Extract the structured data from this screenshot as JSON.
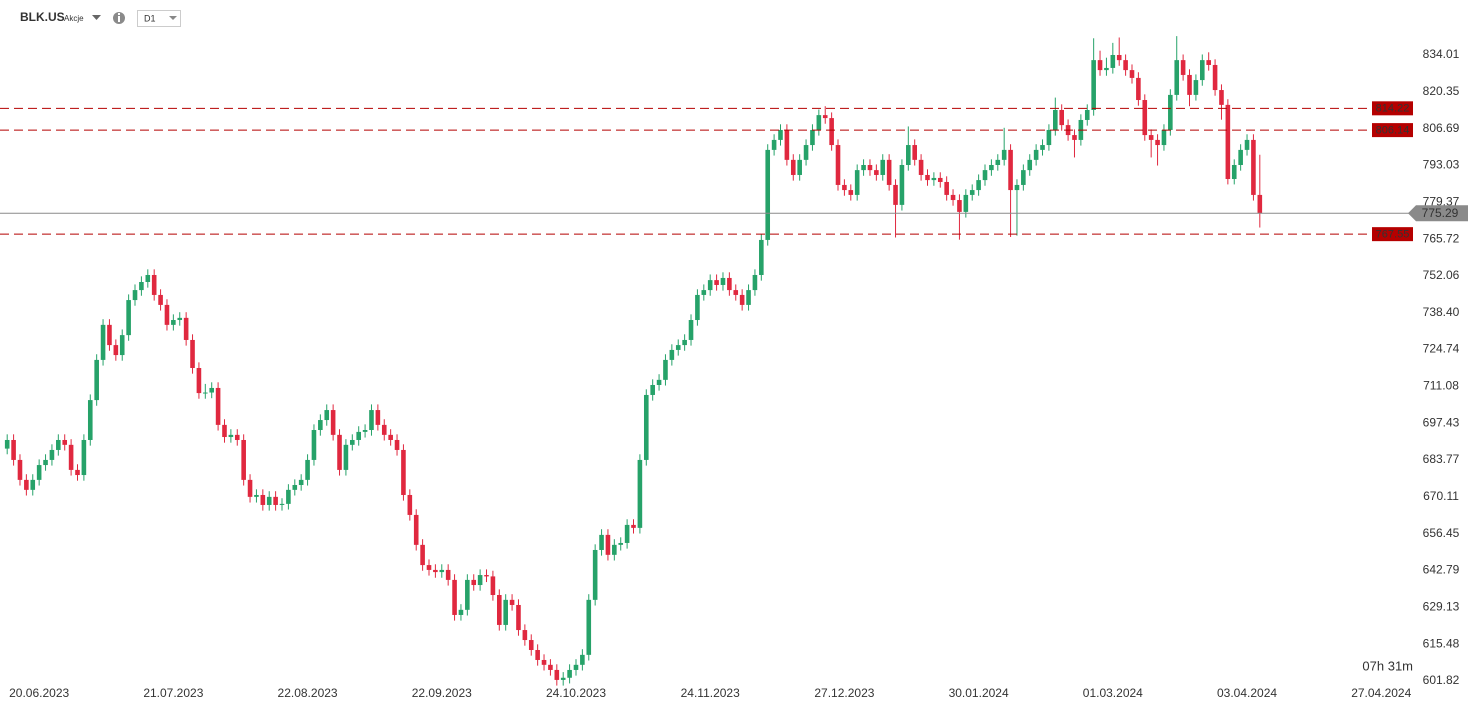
{
  "chart_data": {
    "type": "candlestick",
    "symbol": "BLK.US",
    "market": "Akcje",
    "interval": "D1",
    "countdown": "07h 31m",
    "up_color": "#26a269",
    "down_color": "#e0283f",
    "ylim": [
      592.9,
      854.4
    ],
    "yticks": [
      834.01,
      820.35,
      806.69,
      793.03,
      779.37,
      765.72,
      752.06,
      {
        "value": 738.4,
        "label": "738.40"
      },
      724.74,
      711.08,
      697.43,
      683.77,
      670.11,
      656.45,
      642.79,
      629.13,
      615.48,
      601.82
    ],
    "grid": false,
    "levels": [
      814.22,
      806.14,
      767.55
    ],
    "level_color": "#b50000",
    "last_price": 775.29,
    "last_price_color": "#8a8a8a",
    "categories": [
      null,
      null,
      null,
      null,
      null,
      "20.06.2023",
      null,
      null,
      null,
      null,
      null,
      null,
      null,
      null,
      null,
      null,
      null,
      null,
      null,
      null,
      null,
      null,
      null,
      null,
      null,
      null,
      "21.07.2023",
      null,
      null,
      null,
      null,
      null,
      null,
      null,
      null,
      null,
      null,
      null,
      null,
      null,
      null,
      null,
      null,
      null,
      null,
      null,
      null,
      "22.08.2023",
      null,
      null,
      null,
      null,
      null,
      null,
      null,
      null,
      null,
      null,
      null,
      null,
      null,
      null,
      null,
      null,
      null,
      null,
      null,
      null,
      "22.09.2023",
      null,
      null,
      null,
      null,
      null,
      null,
      null,
      null,
      null,
      null,
      null,
      null,
      null,
      null,
      null,
      null,
      null,
      null,
      null,
      null,
      "24.10.2023",
      null,
      null,
      null,
      null,
      null,
      null,
      null,
      null,
      null,
      null,
      null,
      null,
      null,
      null,
      null,
      null,
      null,
      null,
      null,
      null,
      "24.11.2023",
      null,
      null,
      null,
      null,
      null,
      null,
      null,
      null,
      null,
      null,
      null,
      null,
      null,
      null,
      null,
      null,
      null,
      null,
      null,
      null,
      "27.12.2023",
      null,
      null,
      null,
      null,
      null,
      null,
      null,
      null,
      null,
      null,
      null,
      null,
      null,
      null,
      null,
      null,
      null,
      null,
      null,
      null,
      "30.01.2024",
      null,
      null,
      null,
      null,
      null,
      null,
      null,
      null,
      null,
      null,
      null,
      null,
      null,
      null,
      null,
      null,
      null,
      null,
      null,
      null,
      "01.03.2024",
      null,
      null,
      null,
      null,
      null,
      null,
      null,
      null,
      null,
      null,
      null,
      null,
      null,
      null,
      null,
      null,
      null,
      null,
      null,
      null,
      "03.04.2024",
      null,
      null,
      null,
      null,
      null,
      null,
      null,
      null,
      null,
      null,
      null,
      null,
      null,
      null,
      null,
      null,
      null,
      null,
      null,
      null,
      "27.04.2024",
      null,
      null,
      null,
      null
    ],
    "ohlc": [
      [
        688.0,
        693.3,
        685.9,
        691.2
      ],
      [
        691.2,
        693.3,
        681.7,
        683.8
      ],
      [
        683.8,
        685.9,
        674.3,
        676.4
      ],
      [
        676.4,
        678.5,
        670.6,
        672.7
      ],
      [
        672.7,
        678.5,
        670.6,
        676.4
      ],
      [
        676.4,
        684.0,
        674.3,
        681.9
      ],
      [
        681.9,
        685.9,
        679.8,
        683.8
      ],
      [
        683.8,
        689.6,
        681.7,
        687.5
      ],
      [
        687.5,
        693.3,
        685.4,
        691.2
      ],
      [
        691.2,
        693.3,
        687.3,
        689.4
      ],
      [
        689.4,
        691.5,
        678.0,
        680.1
      ],
      [
        680.1,
        682.2,
        676.1,
        678.2
      ],
      [
        678.2,
        693.3,
        676.1,
        691.2
      ],
      [
        691.2,
        708.1,
        689.1,
        706.0
      ],
      [
        706.0,
        723.0,
        703.9,
        720.9
      ],
      [
        720.9,
        736.0,
        718.8,
        733.9
      ],
      [
        733.9,
        736.0,
        724.3,
        726.4
      ],
      [
        726.4,
        728.5,
        720.6,
        722.7
      ],
      [
        722.7,
        732.2,
        720.6,
        730.1
      ],
      [
        730.1,
        745.2,
        728.0,
        743.1
      ],
      [
        743.1,
        748.9,
        741.0,
        746.8
      ],
      [
        746.8,
        751.9,
        744.7,
        749.8
      ],
      [
        749.8,
        754.5,
        747.7,
        752.4
      ],
      [
        752.4,
        754.5,
        742.9,
        745.0
      ],
      [
        745.0,
        747.1,
        739.2,
        741.3
      ],
      [
        741.3,
        743.4,
        731.8,
        733.9
      ],
      [
        733.9,
        737.8,
        731.8,
        735.7
      ],
      [
        735.7,
        738.6,
        733.6,
        736.5
      ],
      [
        736.5,
        738.6,
        726.2,
        728.3
      ],
      [
        728.3,
        730.4,
        715.8,
        717.9
      ],
      [
        717.9,
        720.0,
        706.5,
        708.6
      ],
      [
        708.6,
        712.0,
        706.5,
        708.8
      ],
      [
        708.8,
        712.6,
        706.7,
        710.5
      ],
      [
        710.5,
        712.6,
        694.7,
        696.8
      ],
      [
        696.8,
        698.9,
        690.2,
        692.3
      ],
      [
        692.3,
        695.2,
        690.2,
        693.1
      ],
      [
        693.1,
        695.2,
        689.1,
        691.2
      ],
      [
        691.2,
        693.3,
        674.3,
        676.4
      ],
      [
        676.4,
        678.5,
        668.0,
        670.1
      ],
      [
        670.1,
        672.9,
        668.0,
        670.8
      ],
      [
        670.8,
        672.9,
        665.0,
        667.1
      ],
      [
        667.1,
        672.2,
        665.0,
        670.1
      ],
      [
        670.1,
        672.2,
        665.0,
        667.1
      ],
      [
        667.1,
        669.6,
        665.0,
        667.5
      ],
      [
        667.5,
        674.8,
        665.4,
        672.7
      ],
      [
        672.7,
        676.6,
        670.6,
        674.5
      ],
      [
        674.5,
        678.5,
        672.4,
        676.4
      ],
      [
        676.4,
        685.9,
        674.3,
        683.8
      ],
      [
        683.8,
        697.0,
        681.7,
        694.9
      ],
      [
        694.9,
        700.7,
        692.8,
        698.6
      ],
      [
        698.6,
        704.4,
        696.5,
        702.3
      ],
      [
        702.3,
        704.4,
        691.0,
        693.1
      ],
      [
        693.1,
        695.2,
        678.0,
        680.1
      ],
      [
        680.1,
        691.5,
        678.0,
        689.4
      ],
      [
        689.4,
        693.3,
        687.3,
        691.2
      ],
      [
        691.2,
        696.3,
        689.1,
        694.2
      ],
      [
        694.2,
        697.0,
        692.1,
        694.9
      ],
      [
        694.9,
        704.4,
        692.8,
        702.3
      ],
      [
        702.3,
        704.4,
        694.7,
        696.8
      ],
      [
        696.8,
        698.9,
        691.0,
        693.1
      ],
      [
        693.1,
        695.2,
        689.1,
        691.2
      ],
      [
        691.2,
        693.3,
        685.4,
        687.5
      ],
      [
        687.5,
        689.6,
        668.7,
        670.8
      ],
      [
        670.8,
        672.9,
        661.3,
        663.4
      ],
      [
        663.4,
        665.5,
        650.2,
        652.3
      ],
      [
        652.3,
        654.4,
        642.7,
        644.8
      ],
      [
        644.8,
        646.9,
        640.9,
        643.0
      ],
      [
        643.0,
        645.1,
        640.1,
        642.2
      ],
      [
        642.2,
        645.1,
        640.1,
        643.0
      ],
      [
        643.0,
        645.1,
        637.2,
        639.3
      ],
      [
        639.3,
        641.4,
        624.2,
        626.3
      ],
      [
        626.3,
        630.3,
        624.2,
        628.2
      ],
      [
        628.2,
        641.4,
        626.1,
        639.3
      ],
      [
        639.3,
        641.4,
        635.3,
        637.4
      ],
      [
        637.4,
        643.2,
        635.3,
        641.1
      ],
      [
        641.1,
        643.2,
        638.5,
        640.6
      ],
      [
        640.6,
        642.7,
        631.6,
        633.7
      ],
      [
        633.7,
        635.8,
        620.5,
        622.6
      ],
      [
        622.6,
        634.0,
        620.5,
        631.9
      ],
      [
        631.9,
        634.0,
        627.9,
        630.0
      ],
      [
        630.0,
        632.1,
        618.6,
        620.7
      ],
      [
        620.7,
        622.8,
        614.9,
        617.0
      ],
      [
        617.0,
        619.1,
        611.2,
        613.3
      ],
      [
        613.3,
        615.4,
        607.5,
        609.6
      ],
      [
        609.6,
        611.7,
        605.7,
        607.8
      ],
      [
        607.8,
        609.9,
        603.8,
        605.9
      ],
      [
        605.9,
        608.0,
        600.1,
        602.2
      ],
      [
        602.2,
        605.1,
        600.1,
        603.0
      ],
      [
        603.0,
        608.0,
        600.9,
        605.9
      ],
      [
        605.9,
        609.9,
        603.8,
        607.8
      ],
      [
        607.8,
        613.6,
        605.7,
        611.5
      ],
      [
        611.5,
        634.0,
        609.4,
        631.9
      ],
      [
        631.9,
        652.5,
        629.8,
        650.4
      ],
      [
        650.4,
        658.1,
        648.3,
        656.0
      ],
      [
        656.0,
        658.1,
        646.5,
        648.6
      ],
      [
        648.6,
        654.4,
        646.5,
        652.3
      ],
      [
        652.3,
        655.1,
        650.2,
        653.0
      ],
      [
        653.0,
        661.8,
        650.9,
        659.7
      ],
      [
        659.7,
        661.8,
        656.5,
        658.6
      ],
      [
        658.6,
        685.9,
        656.5,
        683.8
      ],
      [
        683.8,
        710.0,
        681.7,
        707.9
      ],
      [
        707.9,
        713.7,
        705.8,
        711.6
      ],
      [
        711.6,
        715.6,
        709.5,
        713.5
      ],
      [
        713.5,
        723.0,
        711.4,
        720.9
      ],
      [
        720.9,
        726.7,
        718.8,
        724.6
      ],
      [
        724.6,
        728.5,
        722.5,
        726.4
      ],
      [
        726.4,
        730.4,
        724.3,
        728.3
      ],
      [
        728.3,
        737.8,
        726.2,
        735.7
      ],
      [
        735.7,
        747.1,
        733.6,
        745.0
      ],
      [
        745.0,
        748.9,
        742.9,
        746.8
      ],
      [
        746.8,
        752.6,
        744.7,
        750.5
      ],
      [
        750.5,
        752.6,
        746.6,
        748.7
      ],
      [
        748.7,
        753.4,
        746.6,
        751.3
      ],
      [
        751.3,
        753.4,
        744.7,
        746.8
      ],
      [
        746.8,
        748.9,
        742.9,
        745.0
      ],
      [
        745.0,
        747.1,
        739.2,
        741.3
      ],
      [
        741.3,
        748.9,
        739.2,
        746.8
      ],
      [
        746.8,
        754.5,
        744.7,
        752.4
      ],
      [
        752.4,
        767.5,
        750.3,
        765.4
      ],
      [
        765.4,
        800.9,
        763.3,
        798.8
      ],
      [
        798.8,
        804.6,
        796.7,
        802.5
      ],
      [
        802.5,
        808.3,
        800.4,
        806.2
      ],
      [
        806.2,
        808.3,
        793.0,
        795.1
      ],
      [
        795.1,
        797.2,
        787.4,
        789.5
      ],
      [
        789.5,
        797.2,
        787.4,
        795.1
      ],
      [
        795.1,
        802.7,
        793.0,
        800.6
      ],
      [
        800.6,
        808.3,
        798.5,
        806.2
      ],
      [
        806.2,
        813.8,
        804.1,
        811.7
      ],
      [
        811.7,
        815.0,
        808.5,
        810.6
      ],
      [
        810.6,
        812.7,
        798.5,
        800.6
      ],
      [
        800.6,
        802.7,
        783.7,
        785.8
      ],
      [
        785.8,
        787.9,
        781.8,
        783.9
      ],
      [
        783.9,
        786.0,
        780.0,
        782.1
      ],
      [
        782.1,
        793.4,
        780.0,
        791.3
      ],
      [
        791.3,
        795.3,
        789.2,
        793.2
      ],
      [
        793.2,
        795.3,
        789.2,
        791.3
      ],
      [
        791.3,
        793.4,
        787.4,
        789.5
      ],
      [
        789.5,
        797.2,
        787.4,
        795.1
      ],
      [
        795.1,
        797.2,
        783.7,
        785.8
      ],
      [
        785.8,
        787.9,
        766.3,
        778.4
      ],
      [
        778.4,
        795.3,
        776.3,
        793.2
      ],
      [
        793.2,
        807.5,
        791.1,
        800.6
      ],
      [
        800.6,
        802.7,
        793.0,
        795.1
      ],
      [
        795.1,
        797.2,
        787.4,
        789.5
      ],
      [
        789.5,
        791.6,
        785.5,
        787.6
      ],
      [
        787.6,
        790.5,
        785.5,
        788.4
      ],
      [
        788.4,
        790.5,
        784.8,
        786.9
      ],
      [
        786.9,
        789.0,
        780.0,
        782.1
      ],
      [
        782.1,
        784.2,
        778.1,
        780.2
      ],
      [
        780.2,
        782.3,
        765.5,
        775.8
      ],
      [
        775.8,
        784.2,
        773.7,
        782.1
      ],
      [
        782.1,
        786.0,
        780.0,
        783.9
      ],
      [
        783.9,
        789.7,
        781.8,
        787.6
      ],
      [
        787.6,
        793.4,
        785.5,
        791.3
      ],
      [
        791.3,
        795.3,
        789.2,
        793.2
      ],
      [
        793.2,
        797.2,
        791.1,
        795.1
      ],
      [
        795.1,
        807.0,
        793.0,
        798.8
      ],
      [
        798.8,
        800.9,
        766.5,
        783.9
      ],
      [
        783.9,
        787.9,
        767.0,
        785.8
      ],
      [
        785.8,
        793.4,
        783.7,
        791.3
      ],
      [
        791.3,
        797.2,
        789.2,
        795.1
      ],
      [
        795.1,
        800.9,
        793.0,
        798.8
      ],
      [
        798.8,
        802.7,
        796.7,
        800.6
      ],
      [
        800.6,
        808.3,
        798.5,
        806.2
      ],
      [
        806.2,
        818.2,
        804.1,
        813.6
      ],
      [
        813.6,
        815.7,
        805.9,
        808.0
      ],
      [
        808.0,
        810.1,
        802.2,
        804.3
      ],
      [
        804.3,
        806.4,
        796.0,
        802.5
      ],
      [
        802.5,
        812.0,
        800.4,
        809.9
      ],
      [
        809.9,
        815.7,
        807.8,
        813.6
      ],
      [
        813.6,
        840.2,
        811.5,
        832.1
      ],
      [
        832.1,
        835.6,
        826.3,
        828.4
      ],
      [
        828.4,
        833.0,
        826.3,
        829.2
      ],
      [
        829.2,
        838.5,
        827.1,
        834.0
      ],
      [
        834.0,
        840.5,
        830.0,
        832.1
      ],
      [
        832.1,
        834.2,
        826.3,
        828.4
      ],
      [
        828.4,
        830.5,
        823.4,
        825.5
      ],
      [
        825.5,
        827.6,
        815.2,
        817.3
      ],
      [
        817.3,
        819.4,
        802.2,
        804.3
      ],
      [
        804.3,
        806.4,
        796.0,
        802.5
      ],
      [
        802.5,
        804.6,
        793.0,
        800.6
      ],
      [
        800.6,
        808.3,
        798.5,
        806.2
      ],
      [
        806.2,
        821.3,
        804.1,
        819.2
      ],
      [
        819.2,
        841.0,
        817.1,
        832.1
      ],
      [
        832.1,
        834.2,
        824.5,
        826.6
      ],
      [
        826.6,
        828.7,
        815.0,
        819.2
      ],
      [
        819.2,
        826.8,
        817.1,
        824.7
      ],
      [
        824.7,
        834.2,
        822.6,
        832.1
      ],
      [
        832.1,
        835.0,
        828.2,
        830.3
      ],
      [
        830.3,
        832.4,
        818.9,
        821.0
      ],
      [
        821.0,
        823.1,
        810.0,
        815.5
      ],
      [
        815.5,
        817.6,
        786.0,
        788.0
      ],
      [
        788.0,
        795.3,
        786.0,
        793.2
      ],
      [
        793.2,
        800.9,
        791.1,
        798.8
      ],
      [
        798.8,
        804.6,
        796.7,
        802.5
      ],
      [
        802.5,
        804.6,
        780.0,
        782.1
      ],
      [
        782.1,
        797.0,
        770.0,
        775.29
      ],
      null,
      null,
      null,
      null,
      null,
      null,
      null,
      null,
      null,
      null,
      null,
      null,
      null,
      null,
      null,
      null,
      null,
      null,
      null,
      null,
      null,
      null,
      null
    ]
  }
}
